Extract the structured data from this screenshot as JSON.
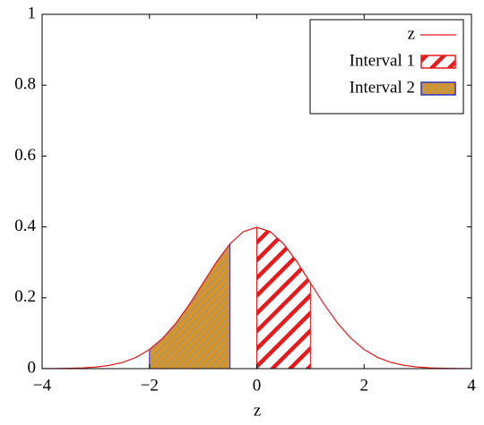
{
  "chart_data": {
    "type": "area",
    "xlabel": "z",
    "xlim": [
      -4,
      4
    ],
    "ylim": [
      0,
      1
    ],
    "xticks": [
      {
        "value": -4,
        "label": "−4"
      },
      {
        "value": -2,
        "label": "−2"
      },
      0,
      2,
      4
    ],
    "yticks": [
      0,
      0.2,
      0.4,
      0.6,
      0.8,
      1
    ],
    "grid": false,
    "legend": "top-right",
    "series": [
      {
        "name": "z",
        "type": "line",
        "color": "#e41a1c",
        "x": [
          -4,
          -3.75,
          -3.5,
          -3.25,
          -3,
          -2.75,
          -2.5,
          -2.25,
          -2,
          -1.75,
          -1.5,
          -1.25,
          -1,
          -0.75,
          -0.5,
          -0.25,
          0,
          0.25,
          0.5,
          0.75,
          1,
          1.25,
          1.5,
          1.75,
          2,
          2.25,
          2.5,
          2.75,
          3,
          3.25,
          3.5,
          3.75,
          4
        ],
        "values": [
          0.0001,
          0.0004,
          0.0009,
          0.002,
          0.0044,
          0.0091,
          0.0175,
          0.0317,
          0.054,
          0.0863,
          0.1295,
          0.1826,
          0.242,
          0.3011,
          0.3521,
          0.3867,
          0.3989,
          0.3867,
          0.3521,
          0.3011,
          0.242,
          0.1826,
          0.1295,
          0.0863,
          0.054,
          0.0317,
          0.0175,
          0.0091,
          0.0044,
          0.002,
          0.0009,
          0.0004,
          0.0001
        ]
      },
      {
        "name": "Interval 1",
        "type": "area",
        "color": "#e41a1c",
        "fill": "#ffffff",
        "hatch": "#e41a1c",
        "x": [
          0,
          0.25,
          0.5,
          0.75,
          1
        ],
        "values": [
          0.3989,
          0.3867,
          0.3521,
          0.3011,
          0.242
        ]
      },
      {
        "name": "Interval 2",
        "type": "area",
        "color": "#3030c0",
        "fill": "#d4952b",
        "hatch": "#7f8fd0",
        "x": [
          -2,
          -1.75,
          -1.5,
          -1.25,
          -1,
          -0.75,
          -0.5
        ],
        "values": [
          0.054,
          0.0863,
          0.1295,
          0.1826,
          0.242,
          0.3011,
          0.3521
        ]
      }
    ]
  }
}
